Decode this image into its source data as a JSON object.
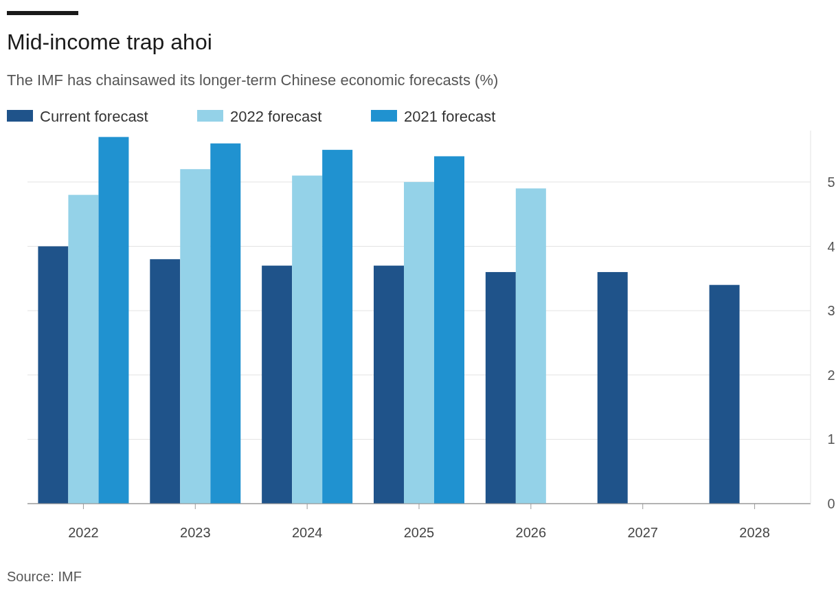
{
  "chart_data": {
    "type": "bar",
    "title": "Mid-income trap ahoi",
    "subtitle": "The IMF has chainsawed its longer-term Chinese economic forecasts (%)",
    "categories": [
      "2022",
      "2023",
      "2024",
      "2025",
      "2026",
      "2027",
      "2028"
    ],
    "series": [
      {
        "name": "Current forecast",
        "color": "#1f538a",
        "values": [
          4.0,
          3.8,
          3.7,
          3.7,
          3.6,
          3.6,
          3.4
        ]
      },
      {
        "name": "2022 forecast",
        "color": "#94d2e8",
        "values": [
          4.8,
          5.2,
          5.1,
          5.0,
          4.9,
          null,
          null
        ]
      },
      {
        "name": "2021 forecast",
        "color": "#2092d0",
        "values": [
          5.7,
          5.6,
          5.5,
          5.4,
          null,
          null,
          null
        ]
      }
    ],
    "ylim": [
      0,
      5.8
    ],
    "yticks": [
      0,
      1,
      2,
      3,
      4,
      5
    ],
    "grid": "y",
    "legend": "top left",
    "annotations": [
      "Source: IMF"
    ]
  }
}
